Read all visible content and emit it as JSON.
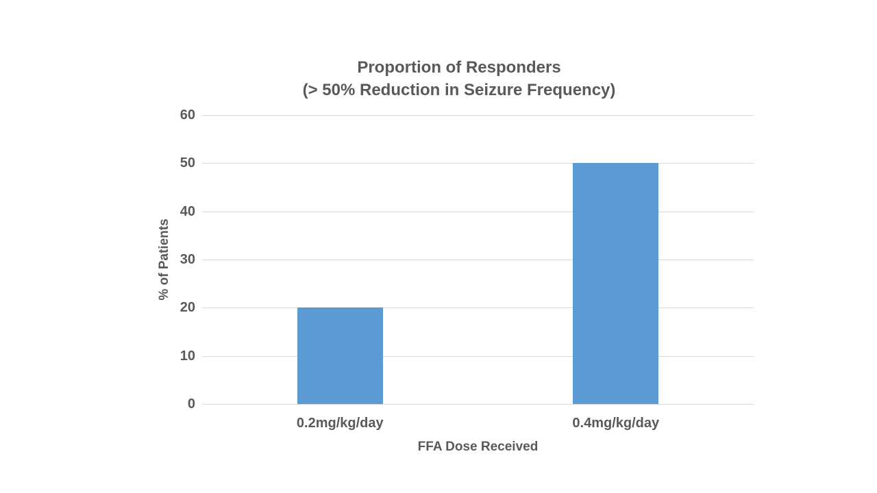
{
  "chart": {
    "title_line1": "Proportion of Responders",
    "title_line2": "(> 50% Reduction in Seizure Frequency)",
    "ylabel": "% of Patients",
    "xlabel": "FFA Dose Received"
  },
  "chart_data": {
    "type": "bar",
    "title": "Proportion of Responders (> 50% Reduction in Seizure Frequency)",
    "categories": [
      "0.2mg/kg/day",
      "0.4mg/kg/day"
    ],
    "values": [
      20,
      50
    ],
    "xlabel": "FFA Dose Received",
    "ylabel": "% of Patients",
    "ylim": [
      0,
      60
    ],
    "ytick_step": 10,
    "yticks": [
      0,
      10,
      20,
      30,
      40,
      50,
      60
    ],
    "grid": true,
    "legend": false,
    "colors": {
      "bar": "#5b9bd5",
      "text": "#595959",
      "gridline": "#d9d9d9",
      "background": "#ffffff"
    }
  }
}
